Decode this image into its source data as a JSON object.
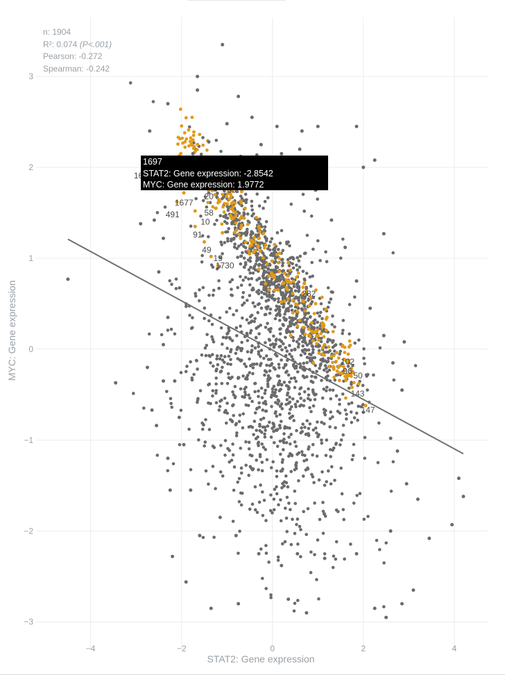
{
  "stats": {
    "n": "n: 1904",
    "r2": "R²: 0.074",
    "pval": "(P<.001)",
    "pearson": "Pearson: -0.272",
    "spearman": "Spearman: -0.242"
  },
  "tooltip": {
    "id": "1697",
    "x_line": "STAT2: Gene expression: -2.8542",
    "y_line": "MYC: Gene expression: 1.9772"
  },
  "colors": {
    "points": "#6b6b6b",
    "highlight": "#e09a1a",
    "regression": "#707070",
    "grid": "#ececec",
    "text": "#9aa0a6"
  },
  "chart_data": {
    "type": "scatter",
    "title": "",
    "xlabel": "STAT2: Gene expression",
    "ylabel": "MYC: Gene expression",
    "xlim": [
      -5.2,
      4.75
    ],
    "ylim": [
      -3.3,
      3.65
    ],
    "xticks": [
      -4,
      -2,
      0,
      2,
      4
    ],
    "yticks": [
      -3,
      -2,
      -1,
      0,
      1,
      2,
      3
    ],
    "x_tick_labels": [
      "−4",
      "−2",
      "0",
      "2",
      "4"
    ],
    "y_tick_labels": [
      "−3",
      "−2",
      "−1",
      "0",
      "1",
      "2",
      "3"
    ],
    "grid": true,
    "regression_line": {
      "x": [
        -4.5,
        4.2
      ],
      "y": [
        1.21,
        -1.15
      ]
    },
    "highlighted_point": {
      "label": "1697",
      "x": -2.8542,
      "y": 1.9772
    },
    "point_labels": [
      {
        "text": "1697",
        "x": -3.05,
        "y": 1.88
      },
      {
        "text": "491",
        "x": -2.35,
        "y": 1.45
      },
      {
        "text": "1677",
        "x": -2.15,
        "y": 1.58
      },
      {
        "text": "91",
        "x": -1.75,
        "y": 1.23
      },
      {
        "text": "58",
        "x": -1.5,
        "y": 1.47
      },
      {
        "text": "10",
        "x": -1.58,
        "y": 1.37
      },
      {
        "text": "49",
        "x": -1.55,
        "y": 1.06
      },
      {
        "text": "19",
        "x": -1.3,
        "y": 0.97
      },
      {
        "text": "1730",
        "x": -1.25,
        "y": 0.89
      },
      {
        "text": "20",
        "x": -1.5,
        "y": 1.65
      },
      {
        "text": "33",
        "x": -1.0,
        "y": 1.72
      },
      {
        "text": "282",
        "x": 0.65,
        "y": 0.58
      },
      {
        "text": "102",
        "x": 1.5,
        "y": -0.17
      },
      {
        "text": "96",
        "x": 1.55,
        "y": -0.27
      },
      {
        "text": "50",
        "x": 1.78,
        "y": -0.32
      },
      {
        "text": "143",
        "x": 1.72,
        "y": -0.52
      },
      {
        "text": "147",
        "x": 1.95,
        "y": -0.7
      }
    ],
    "series": [
      {
        "color": "#6b6b6b",
        "points": [
          [
            -4.5,
            0.77
          ],
          [
            -3.45,
            -0.37
          ],
          [
            -2.65,
            -0.67
          ],
          [
            -2.55,
            -0.84
          ],
          [
            -2.3,
            -1.2
          ],
          [
            -2.2,
            -2.28
          ],
          [
            -1.9,
            -2.56
          ],
          [
            -2.35,
            1.96
          ],
          [
            -2.3,
            2.7
          ],
          [
            -2.7,
            2.4
          ],
          [
            -1.65,
            2.85
          ],
          [
            -1.65,
            3.0
          ],
          [
            -1.1,
            3.35
          ],
          [
            -0.75,
            2.78
          ],
          [
            -2.75,
            -0.2
          ],
          [
            -2.4,
            -0.35
          ],
          [
            3.1,
            -2.65
          ],
          [
            3.45,
            -2.08
          ],
          [
            3.95,
            -1.93
          ],
          [
            4.1,
            -1.42
          ],
          [
            4.2,
            -1.62
          ],
          [
            2.9,
            0.08
          ],
          [
            2.45,
            1.27
          ],
          [
            2.0,
            2.0
          ],
          [
            2.25,
            2.08
          ],
          [
            0.75,
            -2.9
          ],
          [
            0.35,
            -2.75
          ],
          [
            -0.75,
            -2.8
          ],
          [
            -1.35,
            -2.85
          ],
          [
            2.5,
            -2.95
          ],
          [
            2.25,
            -2.85
          ],
          [
            2.85,
            -2.8
          ],
          [
            1.85,
            2.45
          ],
          [
            1.0,
            2.45
          ],
          [
            0.65,
            2.4
          ],
          [
            0.6,
            2.2
          ],
          [
            0.1,
            2.45
          ],
          [
            -0.45,
            2.55
          ],
          [
            -1.0,
            2.48
          ],
          [
            -1.4,
            2.28
          ],
          [
            -2.9,
            1.38
          ],
          [
            -2.6,
            1.42
          ],
          [
            -2.4,
            1.22
          ],
          [
            -2.5,
            0.85
          ],
          [
            -2.3,
            0.35
          ],
          [
            -2.4,
            0.05
          ],
          [
            -2.15,
            -0.35
          ],
          [
            -2.05,
            -0.75
          ],
          [
            -1.95,
            -1.05
          ],
          [
            -1.8,
            -1.55
          ],
          [
            -2.25,
            -1.55
          ],
          [
            -1.6,
            -2.05
          ],
          [
            -1.15,
            -1.85
          ],
          [
            -0.8,
            -2.05
          ],
          [
            -0.3,
            -2.25
          ],
          [
            0.2,
            -2.38
          ],
          [
            0.55,
            -2.25
          ],
          [
            1.15,
            -2.3
          ],
          [
            1.85,
            -2.25
          ],
          [
            2.6,
            -2.0
          ],
          [
            3.2,
            -1.65
          ],
          [
            2.95,
            -1.48
          ],
          [
            2.75,
            -1.12
          ],
          [
            2.6,
            -0.98
          ],
          [
            2.85,
            -0.45
          ],
          [
            2.65,
            -0.15
          ],
          [
            2.45,
            0.15
          ],
          [
            2.15,
            0.45
          ],
          [
            1.85,
            0.75
          ],
          [
            1.6,
            1.12
          ],
          [
            1.3,
            1.42
          ],
          [
            0.95,
            1.75
          ],
          [
            0.6,
            1.95
          ],
          [
            0.2,
            2.15
          ],
          [
            -0.25,
            2.25
          ],
          [
            -0.7,
            2.12
          ],
          [
            -1.15,
            2.05
          ],
          [
            -1.75,
            2.15
          ],
          [
            -2.05,
            1.9
          ]
        ]
      },
      {
        "color": "#e09a1a",
        "points": [
          [
            -2.8542,
            1.9772
          ],
          [
            -2.1,
            1.62
          ],
          [
            -1.95,
            1.72
          ],
          [
            -1.7,
            1.52
          ],
          [
            -1.7,
            1.35
          ],
          [
            -1.5,
            1.18
          ],
          [
            -1.35,
            1.02
          ],
          [
            -1.2,
            0.92
          ],
          [
            -1.1,
            1.28
          ],
          [
            -0.9,
            1.45
          ],
          [
            -0.7,
            1.22
          ],
          [
            -0.5,
            1.05
          ],
          [
            -0.3,
            0.88
          ],
          [
            -0.15,
            0.72
          ],
          [
            0.05,
            0.65
          ],
          [
            0.2,
            0.52
          ],
          [
            0.45,
            0.4
          ],
          [
            0.6,
            0.32
          ],
          [
            0.8,
            0.22
          ],
          [
            1.0,
            0.15
          ],
          [
            1.15,
            0.05
          ],
          [
            1.3,
            -0.08
          ],
          [
            1.45,
            -0.2
          ],
          [
            1.6,
            -0.3
          ],
          [
            1.75,
            -0.42
          ],
          [
            2.05,
            -0.62
          ],
          [
            1.2,
            0.35
          ],
          [
            0.95,
            0.5
          ],
          [
            0.7,
            0.72
          ],
          [
            0.35,
            0.95
          ],
          [
            0.05,
            1.15
          ],
          [
            -0.3,
            1.35
          ],
          [
            -0.6,
            1.55
          ],
          [
            -0.95,
            1.65
          ],
          [
            -1.25,
            1.55
          ],
          [
            0.4,
            0.15
          ],
          [
            0.9,
            -0.15
          ],
          [
            1.35,
            -0.22
          ],
          [
            1.6,
            -0.12
          ],
          [
            1.9,
            -0.38
          ]
        ]
      }
    ]
  }
}
